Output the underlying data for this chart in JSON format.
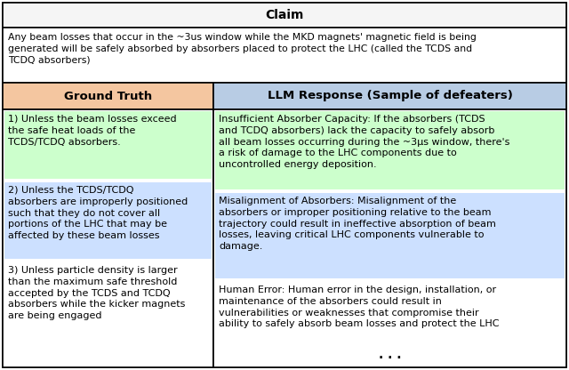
{
  "title": "Claim",
  "claim_text": "Any beam losses that occur in the ~3us window while the MKD magnets' magnetic field is being\ngenerated will be safely absorbed by absorbers placed to protect the LHC (called the TCDS and\nTCDQ absorbers)",
  "col1_header": "Ground Truth",
  "col2_header": "LLM Response (Sample of defeaters)",
  "col1_items": [
    {
      "text": "1) Unless the beam losses exceed\nthe safe heat loads of the\nTCDS/TCDQ absorbers.",
      "highlight": "green"
    },
    {
      "text": "2) Unless the TCDS/TCDQ\nabsorbers are improperly positioned\nsuch that they do not cover all\nportions of the LHC that may be\naffected by these beam losses",
      "highlight": "blue"
    },
    {
      "text": "3) Unless particle density is larger\nthan the maximum safe threshold\naccepted by the TCDS and TCDQ\nabsorbers while the kicker magnets\nare being engaged",
      "highlight": "none"
    }
  ],
  "col2_items": [
    {
      "text": "Insufficient Absorber Capacity: If the absorbers (TCDS\nand TCDQ absorbers) lack the capacity to safely absorb\nall beam losses occurring during the ~3μs window, there's\na risk of damage to the LHC components due to\nuncontrolled energy deposition.",
      "highlight": "green"
    },
    {
      "text": "Misalignment of Absorbers: Misalignment of the\nabsorbers or improper positioning relative to the beam\ntrajectory could result in ineffective absorption of beam\nlosses, leaving critical LHC components vulnerable to\ndamage.",
      "highlight": "blue"
    },
    {
      "text": "Human Error: Human error in the design, installation, or\nmaintenance of the absorbers could result in\nvulnerabilities or weaknesses that compromise their\nability to safely absorb beam losses and protect the LHC",
      "highlight": "none"
    }
  ],
  "dots": ". . .",
  "colors": {
    "title_bg": "#f5f5f5",
    "claim_bg": "#ffffff",
    "col1_header_bg": "#f4c6a0",
    "col2_header_bg": "#b8cce4",
    "green_highlight": "#ccffcc",
    "blue_highlight": "#cce0ff",
    "no_highlight": "#ffffff",
    "border": "#000000"
  },
  "fig_width": 6.4,
  "fig_height": 4.16,
  "dpi": 100
}
